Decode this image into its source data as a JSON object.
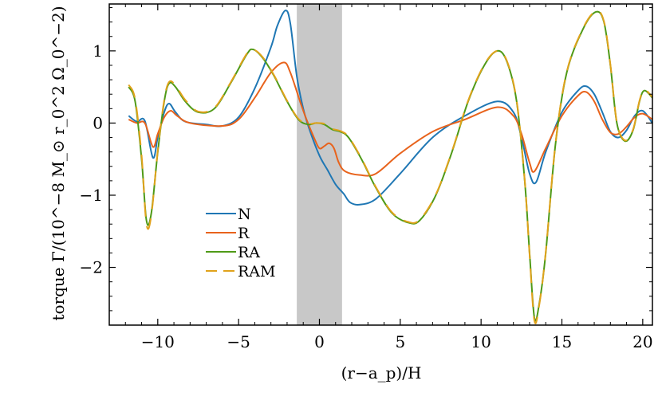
{
  "chart_data": {
    "type": "line",
    "xlabel": "(r−a_p)/H",
    "ylabel": "torque Γ/(10^−8 M_⊙ r_0^2 Ω_0^−2)",
    "xlim": [
      -13,
      20.6
    ],
    "ylim": [
      -2.8,
      1.65
    ],
    "xticks": [
      -10,
      -5,
      0,
      5,
      10,
      15,
      20
    ],
    "yticks": [
      -2,
      -1,
      0,
      1
    ],
    "xtick_labels": [
      "−10",
      "−5",
      "0",
      "5",
      "10",
      "15",
      "20"
    ],
    "ytick_labels": [
      "−2",
      "−1",
      "0",
      "1"
    ],
    "shaded_region": {
      "x_range": [
        -1.4,
        1.4
      ],
      "color": "#c8c8c8"
    },
    "legend_position": "lower-left",
    "series": [
      {
        "name": "N",
        "color": "#1f77b4",
        "dash": "solid",
        "points": [
          [
            -11.8,
            0.1
          ],
          [
            -11.3,
            0.02
          ],
          [
            -10.8,
            0.03
          ],
          [
            -10.3,
            -0.48
          ],
          [
            -10.0,
            -0.2
          ],
          [
            -9.6,
            0.15
          ],
          [
            -9.3,
            0.27
          ],
          [
            -8.9,
            0.15
          ],
          [
            -8.3,
            0.02
          ],
          [
            -7.0,
            -0.02
          ],
          [
            -6.0,
            -0.04
          ],
          [
            -5.0,
            0.08
          ],
          [
            -4.0,
            0.48
          ],
          [
            -3.0,
            1.05
          ],
          [
            -2.6,
            1.35
          ],
          [
            -2.1,
            1.56
          ],
          [
            -1.8,
            1.38
          ],
          [
            -1.4,
            0.65
          ],
          [
            -1.0,
            0.2
          ],
          [
            -0.6,
            -0.1
          ],
          [
            0.0,
            -0.45
          ],
          [
            0.5,
            -0.65
          ],
          [
            1.0,
            -0.85
          ],
          [
            1.5,
            -0.98
          ],
          [
            1.9,
            -1.1
          ],
          [
            2.5,
            -1.13
          ],
          [
            3.5,
            -1.05
          ],
          [
            5.0,
            -0.7
          ],
          [
            7.0,
            -0.2
          ],
          [
            9.0,
            0.1
          ],
          [
            11.0,
            0.3
          ],
          [
            12.0,
            0.15
          ],
          [
            12.5,
            -0.2
          ],
          [
            13.0,
            -0.7
          ],
          [
            13.4,
            -0.82
          ],
          [
            14.0,
            -0.4
          ],
          [
            15.0,
            0.15
          ],
          [
            16.0,
            0.45
          ],
          [
            16.5,
            0.51
          ],
          [
            17.0,
            0.4
          ],
          [
            17.5,
            0.15
          ],
          [
            18.0,
            -0.12
          ],
          [
            18.5,
            -0.2
          ],
          [
            19.0,
            -0.1
          ],
          [
            19.5,
            0.1
          ],
          [
            20.0,
            0.17
          ],
          [
            20.6,
            0.0
          ]
        ]
      },
      {
        "name": "R",
        "color": "#e8631c",
        "dash": "solid",
        "points": [
          [
            -11.8,
            0.05
          ],
          [
            -11.3,
            0.0
          ],
          [
            -10.8,
            0.0
          ],
          [
            -10.3,
            -0.33
          ],
          [
            -10.0,
            -0.15
          ],
          [
            -9.6,
            0.08
          ],
          [
            -9.2,
            0.17
          ],
          [
            -8.8,
            0.1
          ],
          [
            -8.0,
            0.0
          ],
          [
            -6.0,
            -0.04
          ],
          [
            -5.0,
            0.05
          ],
          [
            -4.0,
            0.35
          ],
          [
            -3.0,
            0.7
          ],
          [
            -2.2,
            0.84
          ],
          [
            -1.8,
            0.7
          ],
          [
            -1.2,
            0.3
          ],
          [
            -0.8,
            0.05
          ],
          [
            -0.3,
            -0.22
          ],
          [
            0.0,
            -0.35
          ],
          [
            0.3,
            -0.32
          ],
          [
            0.6,
            -0.28
          ],
          [
            0.9,
            -0.35
          ],
          [
            1.2,
            -0.55
          ],
          [
            1.6,
            -0.67
          ],
          [
            2.5,
            -0.72
          ],
          [
            3.5,
            -0.7
          ],
          [
            5.0,
            -0.42
          ],
          [
            7.0,
            -0.12
          ],
          [
            9.0,
            0.05
          ],
          [
            11.0,
            0.22
          ],
          [
            12.0,
            0.1
          ],
          [
            12.5,
            -0.15
          ],
          [
            13.0,
            -0.55
          ],
          [
            13.3,
            -0.67
          ],
          [
            14.0,
            -0.35
          ],
          [
            15.0,
            0.1
          ],
          [
            16.0,
            0.38
          ],
          [
            16.5,
            0.43
          ],
          [
            17.0,
            0.3
          ],
          [
            17.5,
            0.05
          ],
          [
            18.0,
            -0.13
          ],
          [
            18.5,
            -0.15
          ],
          [
            19.0,
            -0.05
          ],
          [
            19.5,
            0.08
          ],
          [
            20.0,
            0.13
          ],
          [
            20.6,
            0.05
          ]
        ]
      },
      {
        "name": "RA",
        "color": "#4f9a17",
        "dash": "solid",
        "points": [
          [
            -11.8,
            0.5
          ],
          [
            -11.4,
            0.3
          ],
          [
            -11.0,
            -0.5
          ],
          [
            -10.7,
            -1.35
          ],
          [
            -10.4,
            -1.25
          ],
          [
            -10.0,
            -0.4
          ],
          [
            -9.6,
            0.3
          ],
          [
            -9.3,
            0.55
          ],
          [
            -8.9,
            0.5
          ],
          [
            -8.3,
            0.3
          ],
          [
            -7.5,
            0.15
          ],
          [
            -6.5,
            0.2
          ],
          [
            -5.5,
            0.55
          ],
          [
            -4.5,
            0.95
          ],
          [
            -4.1,
            1.02
          ],
          [
            -3.5,
            0.9
          ],
          [
            -2.8,
            0.65
          ],
          [
            -2.0,
            0.3
          ],
          [
            -1.3,
            0.05
          ],
          [
            -0.7,
            -0.02
          ],
          [
            -0.2,
            0.0
          ],
          [
            0.3,
            -0.02
          ],
          [
            0.8,
            -0.09
          ],
          [
            1.3,
            -0.12
          ],
          [
            1.8,
            -0.2
          ],
          [
            2.6,
            -0.5
          ],
          [
            3.5,
            -0.9
          ],
          [
            4.5,
            -1.25
          ],
          [
            5.5,
            -1.38
          ],
          [
            6.2,
            -1.35
          ],
          [
            7.2,
            -1.0
          ],
          [
            8.2,
            -0.4
          ],
          [
            9.2,
            0.3
          ],
          [
            10.2,
            0.8
          ],
          [
            11.0,
            1.0
          ],
          [
            11.6,
            0.85
          ],
          [
            12.2,
            0.3
          ],
          [
            12.7,
            -0.8
          ],
          [
            13.0,
            -1.8
          ],
          [
            13.3,
            -2.7
          ],
          [
            13.6,
            -2.5
          ],
          [
            14.0,
            -1.8
          ],
          [
            14.6,
            -0.3
          ],
          [
            15.3,
            0.7
          ],
          [
            16.3,
            1.3
          ],
          [
            17.1,
            1.54
          ],
          [
            17.6,
            1.4
          ],
          [
            18.0,
            0.8
          ],
          [
            18.4,
            0.0
          ],
          [
            18.9,
            -0.25
          ],
          [
            19.4,
            -0.1
          ],
          [
            19.8,
            0.3
          ],
          [
            20.1,
            0.45
          ],
          [
            20.6,
            0.35
          ]
        ]
      },
      {
        "name": "RAM",
        "color": "#e0a21b",
        "dash": "dashed",
        "points": [
          [
            -11.8,
            0.53
          ],
          [
            -11.4,
            0.33
          ],
          [
            -11.0,
            -0.45
          ],
          [
            -10.7,
            -1.4
          ],
          [
            -10.4,
            -1.28
          ],
          [
            -10.0,
            -0.38
          ],
          [
            -9.6,
            0.32
          ],
          [
            -9.3,
            0.57
          ],
          [
            -8.9,
            0.52
          ],
          [
            -8.3,
            0.32
          ],
          [
            -7.5,
            0.16
          ],
          [
            -6.5,
            0.21
          ],
          [
            -5.5,
            0.56
          ],
          [
            -4.5,
            0.96
          ],
          [
            -4.1,
            1.02
          ],
          [
            -3.5,
            0.91
          ],
          [
            -2.8,
            0.66
          ],
          [
            -2.0,
            0.31
          ],
          [
            -1.3,
            0.06
          ],
          [
            -0.7,
            -0.01
          ],
          [
            -0.2,
            0.0
          ],
          [
            0.3,
            -0.01
          ],
          [
            0.8,
            -0.08
          ],
          [
            1.3,
            -0.11
          ],
          [
            1.8,
            -0.19
          ],
          [
            2.6,
            -0.49
          ],
          [
            3.5,
            -0.89
          ],
          [
            4.5,
            -1.24
          ],
          [
            5.5,
            -1.37
          ],
          [
            6.2,
            -1.34
          ],
          [
            7.2,
            -0.99
          ],
          [
            8.2,
            -0.39
          ],
          [
            9.2,
            0.31
          ],
          [
            10.2,
            0.81
          ],
          [
            11.0,
            1.0
          ],
          [
            11.6,
            0.86
          ],
          [
            12.2,
            0.31
          ],
          [
            12.7,
            -0.79
          ],
          [
            13.0,
            -1.82
          ],
          [
            13.3,
            -2.74
          ],
          [
            13.6,
            -2.52
          ],
          [
            14.0,
            -1.79
          ],
          [
            14.6,
            -0.29
          ],
          [
            15.3,
            0.71
          ],
          [
            16.3,
            1.31
          ],
          [
            17.1,
            1.55
          ],
          [
            17.6,
            1.41
          ],
          [
            18.0,
            0.81
          ],
          [
            18.4,
            0.01
          ],
          [
            18.9,
            -0.24
          ],
          [
            19.4,
            -0.09
          ],
          [
            19.8,
            0.31
          ],
          [
            20.1,
            0.46
          ],
          [
            20.6,
            0.36
          ]
        ]
      }
    ]
  }
}
